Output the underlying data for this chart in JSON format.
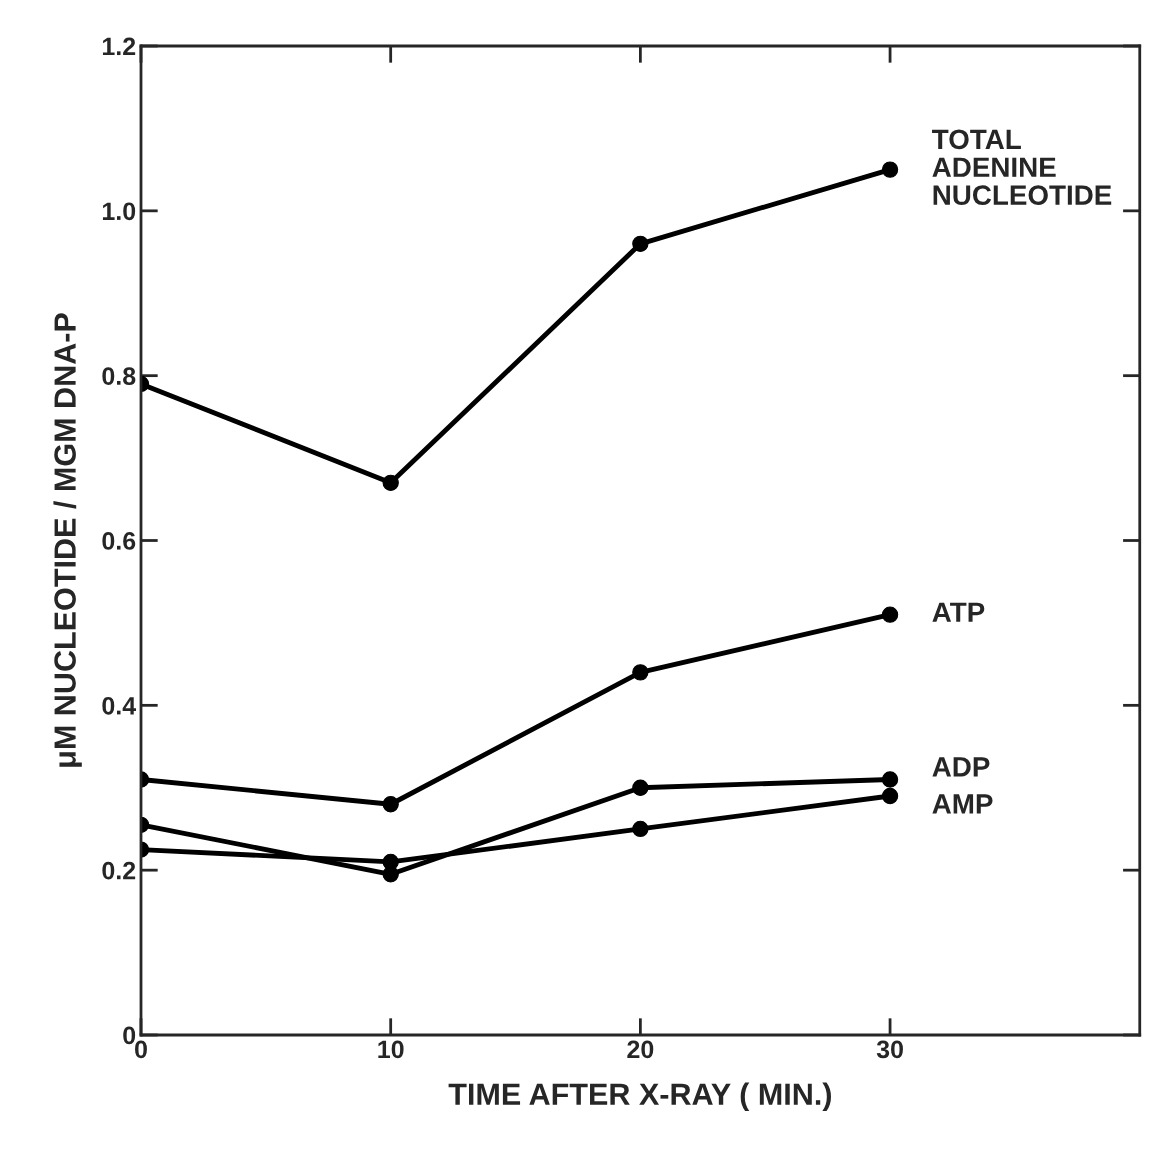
{
  "chart_data": {
    "type": "line",
    "xlabel": "TIME AFTER X-RAY ( MIN.)",
    "ylabel": "μM NUCLEOTIDE / MGM DNA-P",
    "x": [
      0,
      10,
      20,
      30
    ],
    "series": [
      {
        "name": "TOTAL\nADENINE\nNUCLEOTIDE",
        "color": "#000000",
        "values": [
          0.79,
          0.67,
          0.96,
          1.05
        ]
      },
      {
        "name": "ATP",
        "color": "#000000",
        "values": [
          0.31,
          0.28,
          0.44,
          0.51
        ]
      },
      {
        "name": "ADP",
        "color": "#000000",
        "values": [
          0.255,
          0.195,
          0.3,
          0.31
        ]
      },
      {
        "name": "AMP",
        "color": "#000000",
        "values": [
          0.225,
          0.21,
          0.25,
          0.29
        ]
      }
    ],
    "xlim": [
      0,
      40
    ],
    "xticks": [
      0,
      10,
      20,
      30
    ],
    "ylim": [
      0,
      1.2
    ],
    "yticks": [
      0,
      0.2,
      0.4,
      0.6,
      0.8,
      {
        "value": 1.0,
        "label": "1.0"
      },
      1.2
    ],
    "marker": "circle",
    "line_style": "solid",
    "grid": false,
    "legend": false
  }
}
